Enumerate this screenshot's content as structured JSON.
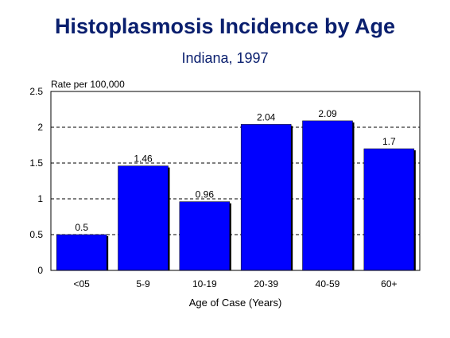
{
  "chart_data": {
    "type": "bar",
    "title": "Histoplasmosis Incidence by Age",
    "subtitle": "Indiana, 1997",
    "ylabel": "Rate per 100,000",
    "xlabel": "Age of Case (Years)",
    "categories": [
      "<05",
      "5-9",
      "10-19",
      "20-39",
      "40-59",
      "60+"
    ],
    "values": [
      0.5,
      1.46,
      0.96,
      2.04,
      2.09,
      1.7
    ],
    "data_labels": [
      "0.5",
      "1.46",
      "0.96",
      "2.04",
      "2.09",
      "1.7"
    ],
    "ylim": [
      0,
      2.5
    ],
    "yticks": [
      0,
      0.5,
      1,
      1.5,
      2,
      2.5
    ],
    "ytick_labels": [
      "0",
      "0.5",
      "1",
      "1.5",
      "2",
      "2.5"
    ],
    "grid": "horizontal dashed",
    "bar_color": "#0000ff"
  }
}
